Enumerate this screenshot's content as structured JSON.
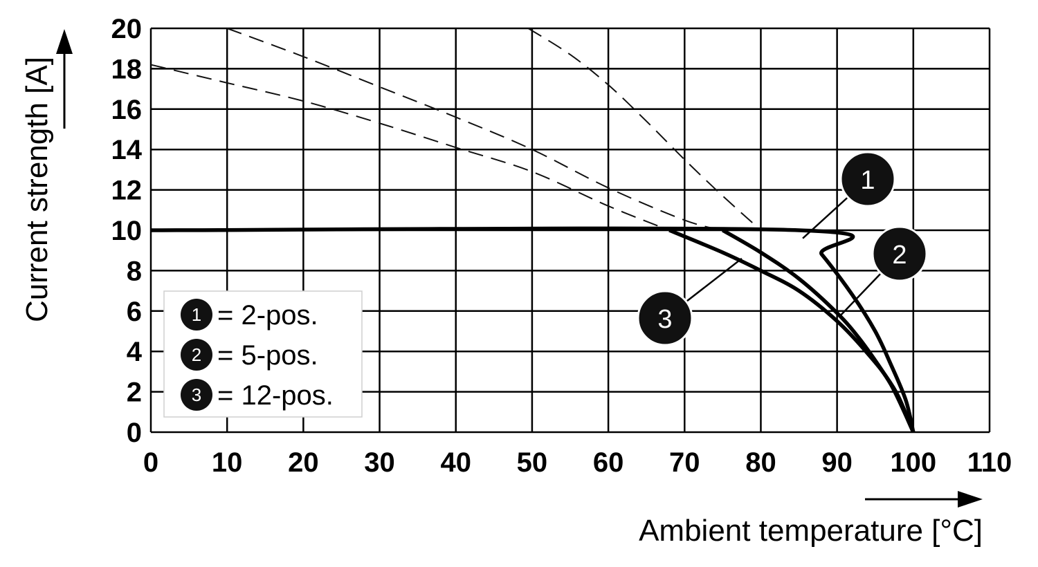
{
  "chart_data": {
    "type": "line",
    "xlabel": "Ambient temperature [°C]",
    "ylabel": "Current strength [A]",
    "xlim": [
      0,
      110
    ],
    "ylim": [
      0,
      20
    ],
    "x_ticks": [
      0,
      10,
      20,
      30,
      40,
      50,
      60,
      70,
      80,
      90,
      100,
      110
    ],
    "y_ticks": [
      0,
      2,
      4,
      6,
      8,
      10,
      12,
      14,
      16,
      18,
      20
    ],
    "grid": true,
    "legend": {
      "placement": "bottom-left",
      "entries": [
        {
          "marker": "1",
          "text": "= 2-pos."
        },
        {
          "marker": "2",
          "text": "= 5-pos."
        },
        {
          "marker": "3",
          "text": "= 12-pos."
        }
      ]
    },
    "series": [
      {
        "marker": "1",
        "style": "solid",
        "points": [
          [
            0,
            10
          ],
          [
            85,
            10
          ],
          [
            88,
            8.8
          ],
          [
            92,
            6.8
          ],
          [
            95,
            5.0
          ],
          [
            97,
            3.4
          ],
          [
            99,
            1.6
          ],
          [
            100,
            0
          ]
        ]
      },
      {
        "marker": "2",
        "style": "solid",
        "points": [
          [
            75,
            10
          ],
          [
            80,
            8.9
          ],
          [
            85,
            7.6
          ],
          [
            90,
            5.9
          ],
          [
            93,
            4.6
          ],
          [
            96,
            3.0
          ],
          [
            98,
            1.8
          ],
          [
            100,
            0
          ]
        ]
      },
      {
        "marker": "3",
        "style": "solid",
        "points": [
          [
            68,
            10
          ],
          [
            75,
            8.9
          ],
          [
            80,
            8.0
          ],
          [
            85,
            7.0
          ],
          [
            90,
            5.5
          ],
          [
            94,
            3.9
          ],
          [
            97,
            2.4
          ],
          [
            100,
            0
          ]
        ]
      },
      {
        "marker": "1",
        "style": "dashed",
        "points": [
          [
            49.5,
            20
          ],
          [
            55,
            18.7
          ],
          [
            60,
            17.2
          ],
          [
            65,
            15.4
          ],
          [
            70,
            13.5
          ],
          [
            75,
            11.7
          ],
          [
            80,
            10
          ]
        ]
      },
      {
        "marker": "2",
        "style": "dashed",
        "points": [
          [
            10,
            20
          ],
          [
            20,
            18.6
          ],
          [
            30,
            17.1
          ],
          [
            40,
            15.6
          ],
          [
            50,
            14.0
          ],
          [
            60,
            12.1
          ],
          [
            70,
            10.5
          ],
          [
            75,
            10
          ]
        ]
      },
      {
        "marker": "3",
        "style": "dashed",
        "points": [
          [
            0,
            18.2
          ],
          [
            10,
            17.3
          ],
          [
            20,
            16.4
          ],
          [
            30,
            15.3
          ],
          [
            40,
            14.1
          ],
          [
            50,
            12.9
          ],
          [
            60,
            11.2
          ],
          [
            68,
            10
          ]
        ]
      }
    ],
    "callouts": [
      {
        "label": "1",
        "at": [
          85.5,
          9.6
        ]
      },
      {
        "label": "2",
        "at": [
          90.5,
          5.8
        ]
      },
      {
        "label": "3",
        "at": [
          77.5,
          8.6
        ]
      }
    ]
  }
}
